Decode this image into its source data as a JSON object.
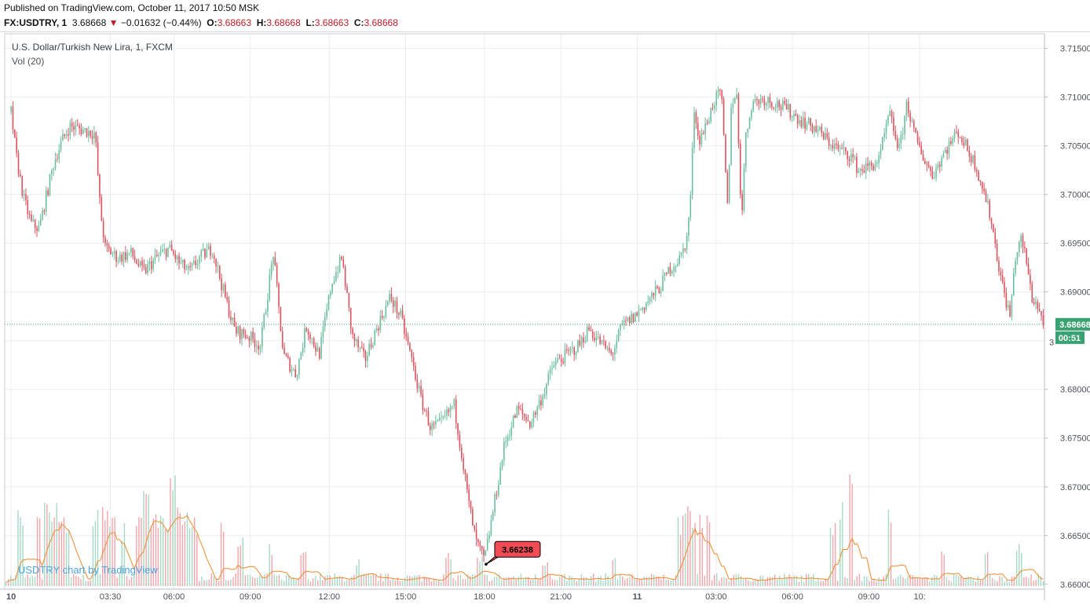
{
  "header": {
    "published": "Published on TradingView.com, October 11, 2017 10:50 MSK",
    "symbol": "FX:USDTRY, 1",
    "last": "3.68668",
    "change": "−0.01632 (−0.44%)",
    "o_label": "O:",
    "o_val": "3.68663",
    "h_label": "H:",
    "h_val": "3.68668",
    "l_label": "L:",
    "l_val": "3.68663",
    "c_label": "C:",
    "c_val": "3.68668"
  },
  "overlay": {
    "title": "U.S. Dollar/Turkish New Lira, 1, FXCM",
    "vol": "Vol (20)",
    "watermark": "USDTRY chart by TradingView"
  },
  "colors": {
    "up": "#6bbf9e",
    "down": "#d9545e",
    "vol_up": "#a7d9c4",
    "vol_down": "#f2a6ab",
    "vol_ma": "#f08a2c",
    "grid": "#e9edf0",
    "last_price": "#3aa272",
    "low_marker": "#f14b55"
  },
  "chart_data": {
    "type": "candlestick",
    "title": "U.S. Dollar/Turkish New Lira, 1, FXCM",
    "ylim": [
      3.6595,
      3.7165
    ],
    "y_ticks": [
      "3.71500",
      "3.71000",
      "3.70500",
      "3.70000",
      "3.69500",
      "3.69000",
      "3.68500",
      "3.68000",
      "3.67500",
      "3.67000",
      "3.66500",
      "3.66000"
    ],
    "x_ticks": [
      "10",
      "03:30",
      "06:00",
      "09:00",
      "12:00",
      "15:00",
      "18:00",
      "21:00",
      "11",
      "03:00",
      "06:00",
      "09:00",
      "10:"
    ],
    "x_tick_hours": [
      0,
      3.5,
      6,
      9,
      12,
      15,
      18,
      21,
      24,
      27,
      30,
      33,
      34.83
    ],
    "xlim_hours": [
      -0.25,
      34.9
    ],
    "price_path": [
      [
        0,
        3.7085
      ],
      [
        0.2,
        3.704
      ],
      [
        0.5,
        3.6995
      ],
      [
        0.8,
        3.697
      ],
      [
        1.1,
        3.6965
      ],
      [
        1.4,
        3.7
      ],
      [
        1.7,
        3.7035
      ],
      [
        2.0,
        3.7055
      ],
      [
        2.3,
        3.707
      ],
      [
        2.6,
        3.7068
      ],
      [
        3.0,
        3.7065
      ],
      [
        3.3,
        3.7063
      ],
      [
        3.5,
        3.6985
      ],
      [
        3.7,
        3.6945
      ],
      [
        4.2,
        3.6935
      ],
      [
        4.7,
        3.694
      ],
      [
        5.2,
        3.692
      ],
      [
        5.7,
        3.6935
      ],
      [
        6.2,
        3.6945
      ],
      [
        6.6,
        3.693
      ],
      [
        7.0,
        3.692
      ],
      [
        7.4,
        3.6935
      ],
      [
        7.9,
        3.6945
      ],
      [
        8.4,
        3.6895
      ],
      [
        8.8,
        3.686
      ],
      [
        9.3,
        3.6855
      ],
      [
        9.8,
        3.6845
      ],
      [
        10.3,
        3.694
      ],
      [
        10.7,
        3.6835
      ],
      [
        11.2,
        3.6815
      ],
      [
        11.6,
        3.6865
      ],
      [
        12.1,
        3.6835
      ],
      [
        12.6,
        3.691
      ],
      [
        13.0,
        3.6935
      ],
      [
        13.4,
        3.6855
      ],
      [
        13.9,
        3.683
      ],
      [
        14.4,
        3.6865
      ],
      [
        14.9,
        3.6895
      ],
      [
        15.3,
        3.6875
      ],
      [
        15.7,
        3.6835
      ],
      [
        16.1,
        3.679
      ],
      [
        16.5,
        3.676
      ],
      [
        16.9,
        3.6765
      ],
      [
        17.4,
        3.6785
      ],
      [
        17.7,
        3.6735
      ],
      [
        17.95,
        3.6688
      ],
      [
        18.25,
        3.6645
      ],
      [
        18.6,
        3.6624
      ],
      [
        19.0,
        3.6685
      ],
      [
        19.4,
        3.6745
      ],
      [
        19.9,
        3.678
      ],
      [
        20.4,
        3.6765
      ],
      [
        20.9,
        3.6795
      ],
      [
        21.3,
        3.6825
      ],
      [
        21.8,
        3.6835
      ],
      [
        22.3,
        3.6845
      ],
      [
        22.7,
        3.6862
      ],
      [
        23.1,
        3.685
      ],
      [
        23.6,
        3.6835
      ],
      [
        24.0,
        3.6865
      ],
      [
        24.5,
        3.6875
      ],
      [
        25.0,
        3.689
      ],
      [
        25.5,
        3.6905
      ],
      [
        25.9,
        3.6925
      ],
      [
        26.3,
        3.6935
      ],
      [
        26.55,
        3.6955
      ],
      [
        26.7,
        3.7
      ],
      [
        26.85,
        3.7095
      ],
      [
        27.0,
        3.7055
      ],
      [
        27.3,
        3.707
      ],
      [
        27.6,
        3.7095
      ],
      [
        27.9,
        3.7105
      ],
      [
        28.15,
        3.6985
      ],
      [
        28.3,
        3.7095
      ],
      [
        28.5,
        3.7105
      ],
      [
        28.7,
        3.6975
      ],
      [
        28.85,
        3.7055
      ],
      [
        29.1,
        3.7095
      ],
      [
        29.6,
        3.7098
      ],
      [
        30.1,
        3.7093
      ],
      [
        30.6,
        3.7085
      ],
      [
        31.1,
        3.7075
      ],
      [
        31.6,
        3.7068
      ],
      [
        32.1,
        3.7055
      ],
      [
        32.6,
        3.7045
      ],
      [
        33.0,
        3.704
      ],
      [
        33.3,
        3.7025
      ],
      [
        33.7,
        3.7028
      ],
      [
        34.1,
        3.7035
      ],
      [
        34.5,
        3.7083
      ],
      [
        34.9,
        3.7045
      ],
      [
        35.2,
        3.7095
      ],
      [
        35.5,
        3.706
      ],
      [
        35.9,
        3.7035
      ],
      [
        36.2,
        3.702
      ],
      [
        36.7,
        3.7045
      ],
      [
        37.2,
        3.7065
      ],
      [
        37.5,
        3.705
      ],
      [
        37.9,
        3.703
      ],
      [
        38.2,
        3.7005
      ],
      [
        38.5,
        3.6975
      ],
      [
        38.75,
        3.6935
      ],
      [
        39.0,
        3.69
      ],
      [
        39.25,
        3.6875
      ],
      [
        39.45,
        3.6935
      ],
      [
        39.7,
        3.6955
      ],
      [
        39.9,
        3.693
      ],
      [
        40.1,
        3.6895
      ],
      [
        40.35,
        3.6885
      ],
      [
        40.55,
        3.6867
      ]
    ],
    "last_price": "3.68668",
    "countdown": "00:51",
    "low_marker": {
      "time_hours": 18.6,
      "value": "3.66238"
    },
    "volume": {
      "label": "Vol (20)",
      "spikes": [
        [
          0.35,
          0.6
        ],
        [
          1.1,
          0.6
        ],
        [
          1.4,
          0.6
        ],
        [
          1.7,
          0.6
        ],
        [
          2.0,
          0.55
        ],
        [
          2.2,
          0.45
        ],
        [
          3.3,
          0.55
        ],
        [
          3.7,
          0.6
        ],
        [
          4.0,
          0.5
        ],
        [
          4.4,
          0.45
        ],
        [
          5.0,
          0.5
        ],
        [
          5.3,
          0.7
        ],
        [
          5.6,
          0.55
        ],
        [
          5.9,
          0.5
        ],
        [
          6.1,
          0.45
        ],
        [
          6.35,
          0.9
        ],
        [
          6.55,
          0.6
        ],
        [
          6.85,
          0.55
        ],
        [
          7.05,
          0.45
        ],
        [
          7.25,
          0.5
        ],
        [
          8.3,
          0.45
        ],
        [
          9.0,
          0.35
        ],
        [
          10.2,
          0.3
        ],
        [
          11.5,
          0.25
        ],
        [
          13.6,
          0.2
        ],
        [
          17.2,
          0.25
        ],
        [
          18.4,
          0.22
        ],
        [
          21.0,
          0.2
        ],
        [
          23.7,
          0.22
        ],
        [
          26.3,
          0.5
        ],
        [
          26.6,
          0.6
        ],
        [
          26.8,
          0.5
        ],
        [
          27.1,
          0.55
        ],
        [
          27.4,
          0.5
        ],
        [
          32.3,
          0.5
        ],
        [
          32.6,
          0.6
        ],
        [
          33.0,
          0.95
        ],
        [
          34.5,
          0.55
        ],
        [
          36.6,
          0.3
        ],
        [
          38.3,
          0.25
        ],
        [
          39.6,
          0.3
        ]
      ]
    }
  }
}
